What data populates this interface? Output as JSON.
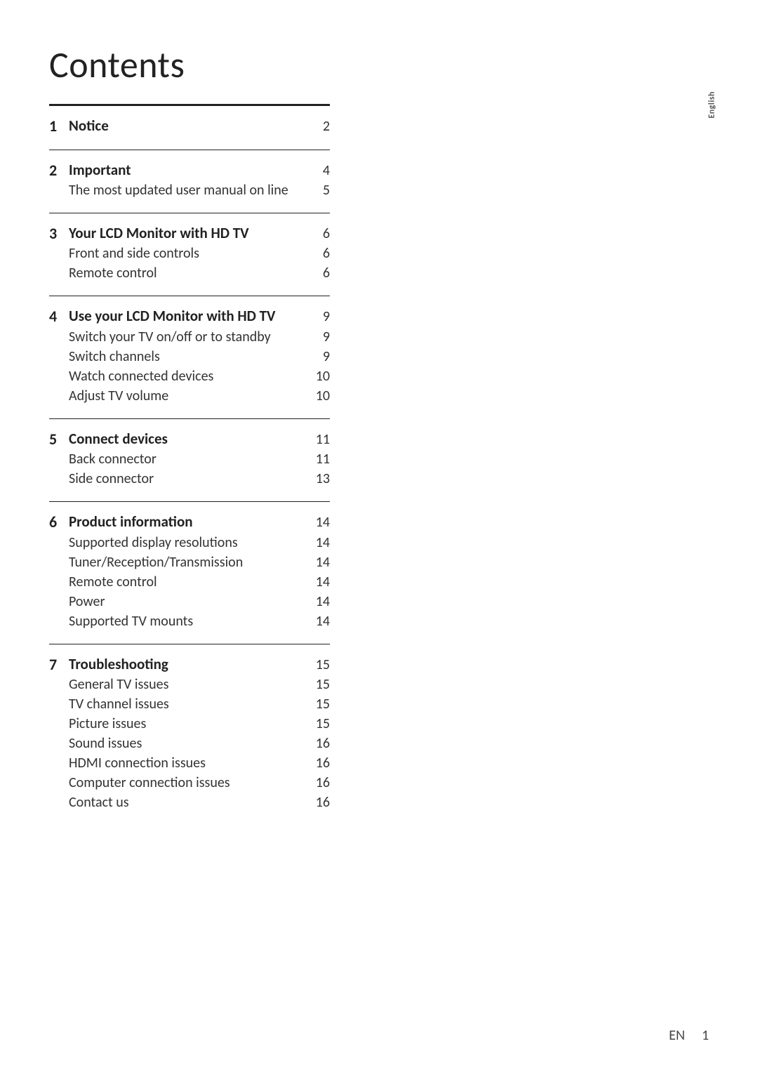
{
  "title": "Contents",
  "side_tab": "English",
  "footer": {
    "lang": "EN",
    "page": "1"
  },
  "sections": [
    {
      "num": "1",
      "head": {
        "label": "Notice",
        "page": "2"
      },
      "subs": []
    },
    {
      "num": "2",
      "head": {
        "label": "Important",
        "page": "4"
      },
      "subs": [
        {
          "label": "The most updated user manual on line",
          "page": "5"
        }
      ]
    },
    {
      "num": "3",
      "head": {
        "label": "Your LCD Monitor with HD TV",
        "page": "6"
      },
      "subs": [
        {
          "label": "Front and side controls",
          "page": "6"
        },
        {
          "label": "Remote control",
          "page": "6"
        }
      ]
    },
    {
      "num": "4",
      "head": {
        "label": "Use your LCD Monitor with HD TV",
        "page": "9"
      },
      "subs": [
        {
          "label": "Switch your TV on/off or to standby",
          "page": "9"
        },
        {
          "label": "Switch channels",
          "page": "9"
        },
        {
          "label": "Watch connected devices",
          "page": "10"
        },
        {
          "label": "Adjust TV volume",
          "page": "10"
        }
      ]
    },
    {
      "num": "5",
      "head": {
        "label": "Connect devices",
        "page": "11"
      },
      "subs": [
        {
          "label": "Back connector",
          "page": "11"
        },
        {
          "label": "Side connector",
          "page": "13"
        }
      ]
    },
    {
      "num": "6",
      "head": {
        "label": "Product information",
        "page": "14"
      },
      "subs": [
        {
          "label": "Supported display resolutions",
          "page": "14"
        },
        {
          "label": "Tuner/Reception/Transmission",
          "page": "14"
        },
        {
          "label": "Remote control",
          "page": "14"
        },
        {
          "label": "Power",
          "page": "14"
        },
        {
          "label": "Supported TV mounts",
          "page": "14"
        }
      ]
    },
    {
      "num": "7",
      "head": {
        "label": "Troubleshooting",
        "page": "15"
      },
      "subs": [
        {
          "label": "General TV issues",
          "page": "15"
        },
        {
          "label": "TV channel issues",
          "page": "15"
        },
        {
          "label": "Picture issues",
          "page": "15"
        },
        {
          "label": "Sound issues",
          "page": "16"
        },
        {
          "label": "HDMI connection issues",
          "page": "16"
        },
        {
          "label": "Computer connection issues",
          "page": "16"
        },
        {
          "label": "Contact us",
          "page": "16"
        }
      ]
    }
  ]
}
